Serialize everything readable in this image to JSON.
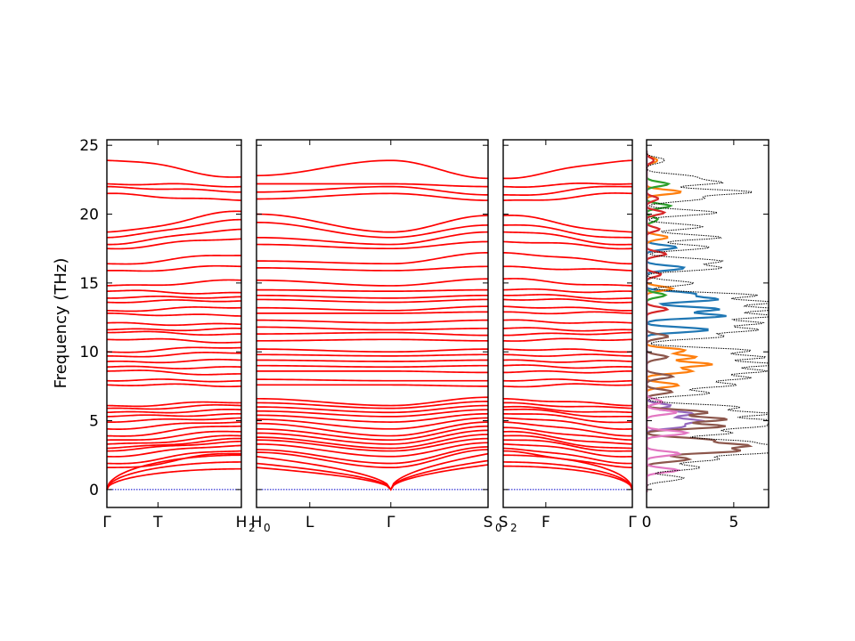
{
  "chart_data": {
    "type": "line",
    "title": "",
    "ylabel": "Frequency (THz)",
    "ylim": [
      -1.3,
      25.4
    ],
    "yticks": [
      0,
      5,
      10,
      15,
      20,
      25
    ],
    "band_color": "#ff0000",
    "zero_line_color": "#0000cc",
    "dos_envelope_color": "#000000",
    "band_segments": [
      {
        "id": "seg1",
        "xlim": [
          0,
          1
        ],
        "ticks": [
          {
            "x": 0,
            "label": "Γ",
            "sub": ""
          },
          {
            "x": 0.38,
            "label": "T",
            "sub": ""
          },
          {
            "x": 1,
            "label": "H",
            "sub": "2"
          }
        ],
        "start_freqs": [
          0,
          0,
          0,
          1.6,
          1.9,
          2.4,
          2.8,
          3.0,
          3.3,
          3.6,
          3.9,
          4.4,
          4.9,
          5.3,
          5.6,
          5.9,
          6.1,
          7.6,
          7.9,
          8.6,
          8.9,
          9.3,
          9.7,
          10.0,
          10.9,
          11.4,
          11.6,
          12.1,
          12.8,
          13.0,
          13.6,
          13.9,
          14.4,
          14.8,
          15.9,
          16.4,
          17.5,
          17.8,
          18.3,
          18.7,
          21.5,
          22.0,
          22.2,
          23.9
        ],
        "end_freqs": [
          1.5,
          2.0,
          2.5,
          2.6,
          2.8,
          3.2,
          3.5,
          3.7,
          3.9,
          4.2,
          4.6,
          4.9,
          5.2,
          5.5,
          5.8,
          6.1,
          6.3,
          7.5,
          7.9,
          8.4,
          8.9,
          9.4,
          9.9,
          10.3,
          10.7,
          11.3,
          11.7,
          12.0,
          12.6,
          13.2,
          13.7,
          14.0,
          14.3,
          15.2,
          16.2,
          17.0,
          18.2,
          18.9,
          19.6,
          20.2,
          21.0,
          21.6,
          22.0,
          22.7
        ]
      },
      {
        "id": "seg2",
        "xlim": [
          0,
          1
        ],
        "ticks": [
          {
            "x": 0,
            "label": "H",
            "sub": "0"
          },
          {
            "x": 0.23,
            "label": "L",
            "sub": ""
          },
          {
            "x": 0.58,
            "label": "Γ",
            "sub": ""
          },
          {
            "x": 1,
            "label": "S",
            "sub": "0"
          }
        ],
        "gamma_x": 0.58,
        "start_freqs": [
          1.6,
          1.9,
          2.4,
          2.7,
          2.9,
          3.3,
          3.6,
          3.8,
          4.1,
          4.4,
          4.8,
          5.1,
          5.4,
          5.7,
          6.0,
          6.3,
          6.6,
          7.6,
          8.0,
          8.6,
          9.0,
          9.4,
          9.8,
          10.2,
          10.8,
          11.3,
          11.8,
          12.3,
          12.8,
          13.2,
          13.8,
          14.1,
          14.5,
          15.2,
          16.1,
          16.6,
          17.8,
          18.3,
          19.4,
          20.0,
          21.1,
          21.6,
          22.2,
          22.8
        ],
        "gamma_freqs": [
          0,
          0,
          0,
          1.6,
          1.9,
          2.4,
          2.8,
          3.0,
          3.3,
          3.6,
          3.9,
          4.4,
          4.9,
          5.3,
          5.6,
          5.9,
          6.1,
          7.6,
          7.9,
          8.6,
          8.9,
          9.3,
          9.7,
          10.0,
          10.9,
          11.4,
          11.6,
          12.1,
          12.8,
          13.0,
          13.6,
          13.9,
          14.4,
          14.8,
          15.9,
          16.4,
          17.5,
          17.8,
          18.3,
          18.7,
          21.5,
          22.0,
          22.2,
          23.9
        ],
        "end_freqs": [
          1.8,
          2.1,
          2.6,
          2.9,
          3.1,
          3.4,
          3.7,
          4.0,
          4.3,
          4.6,
          4.9,
          5.2,
          5.5,
          5.8,
          6.1,
          6.4,
          6.7,
          7.5,
          7.9,
          8.5,
          9.0,
          9.4,
          9.8,
          10.2,
          10.8,
          11.2,
          11.7,
          12.3,
          12.9,
          13.3,
          13.8,
          14.1,
          14.5,
          15.3,
          16.2,
          17.2,
          18.0,
          18.7,
          19.2,
          19.9,
          21.0,
          21.4,
          22.0,
          22.6
        ]
      },
      {
        "id": "seg3",
        "xlim": [
          0,
          1
        ],
        "ticks": [
          {
            "x": 0,
            "label": "S",
            "sub": "2"
          },
          {
            "x": 0.33,
            "label": "F",
            "sub": ""
          },
          {
            "x": 1,
            "label": "Γ",
            "sub": ""
          }
        ],
        "start_freqs": [
          1.7,
          2.0,
          2.5,
          2.8,
          3.0,
          3.3,
          3.6,
          3.9,
          4.2,
          4.5,
          4.9,
          5.2,
          5.5,
          5.8,
          6.0,
          6.3,
          6.6,
          7.5,
          7.9,
          8.5,
          9.0,
          9.4,
          9.8,
          10.2,
          10.8,
          11.2,
          11.7,
          12.3,
          12.9,
          13.3,
          13.8,
          14.1,
          14.5,
          15.3,
          16.2,
          17.2,
          18.0,
          18.7,
          19.2,
          19.9,
          21.0,
          21.4,
          22.0,
          22.6
        ],
        "end_freqs": [
          0,
          0,
          0,
          1.6,
          1.9,
          2.4,
          2.8,
          3.0,
          3.3,
          3.6,
          3.9,
          4.4,
          4.9,
          5.3,
          5.6,
          5.9,
          6.1,
          7.6,
          7.9,
          8.6,
          8.9,
          9.3,
          9.7,
          10.0,
          10.9,
          11.4,
          11.6,
          12.1,
          12.8,
          13.0,
          13.6,
          13.9,
          14.4,
          14.8,
          15.9,
          16.4,
          17.5,
          17.8,
          18.3,
          18.7,
          21.5,
          22.0,
          22.2,
          23.9
        ]
      }
    ],
    "dos": {
      "xlim": [
        0,
        7
      ],
      "xticks": [
        0,
        5
      ],
      "total_peaks": [
        [
          0.8,
          2.0
        ],
        [
          1.6,
          2.4
        ],
        [
          2.2,
          4.0
        ],
        [
          2.7,
          6.2
        ],
        [
          3.1,
          6.6
        ],
        [
          3.5,
          5.2
        ],
        [
          4.1,
          4.2
        ],
        [
          4.6,
          5.6
        ],
        [
          5.0,
          7.0
        ],
        [
          5.5,
          6.4
        ],
        [
          6.0,
          4.6
        ],
        [
          7.0,
          3.0
        ],
        [
          7.6,
          4.6
        ],
        [
          8.1,
          5.6
        ],
        [
          8.6,
          6.0
        ],
        [
          9.1,
          7.0
        ],
        [
          9.6,
          6.4
        ],
        [
          10.1,
          5.2
        ],
        [
          11.1,
          4.0
        ],
        [
          11.6,
          5.6
        ],
        [
          12.1,
          6.2
        ],
        [
          12.6,
          6.8
        ],
        [
          13.1,
          6.6
        ],
        [
          13.6,
          7.0
        ],
        [
          14.1,
          5.8
        ],
        [
          15.0,
          2.4
        ],
        [
          16.1,
          3.6
        ],
        [
          16.6,
          4.2
        ],
        [
          17.6,
          3.0
        ],
        [
          18.3,
          4.0
        ],
        [
          19.1,
          2.6
        ],
        [
          20.1,
          3.4
        ],
        [
          21.1,
          3.0
        ],
        [
          21.6,
          5.4
        ],
        [
          22.3,
          4.0
        ],
        [
          22.7,
          2.2
        ],
        [
          23.9,
          1.0
        ]
      ],
      "partials": [
        {
          "color": "#1f77b4",
          "peaks": [
            [
              11.6,
              3.0
            ],
            [
              12.6,
              4.2
            ],
            [
              13.1,
              3.6
            ],
            [
              13.8,
              4.0
            ],
            [
              14.2,
              2.2
            ],
            [
              16.1,
              1.6
            ],
            [
              17.6,
              1.2
            ]
          ]
        },
        {
          "color": "#ff7f0e",
          "peaks": [
            [
              7.6,
              1.4
            ],
            [
              8.6,
              2.0
            ],
            [
              9.1,
              3.4
            ],
            [
              9.6,
              2.6
            ],
            [
              10.1,
              1.6
            ],
            [
              14.6,
              1.0
            ],
            [
              18.3,
              1.0
            ],
            [
              21.6,
              1.4
            ],
            [
              23.9,
              0.6
            ]
          ]
        },
        {
          "color": "#2ca02c",
          "peaks": [
            [
              14.1,
              0.8
            ],
            [
              19.6,
              0.6
            ],
            [
              20.6,
              1.0
            ],
            [
              22.2,
              1.0
            ]
          ]
        },
        {
          "color": "#d62728",
          "peaks": [
            [
              13.1,
              0.8
            ],
            [
              15.6,
              0.6
            ],
            [
              17.1,
              0.8
            ],
            [
              18.9,
              0.5
            ],
            [
              20.1,
              0.7
            ],
            [
              21.1,
              0.6
            ],
            [
              23.9,
              0.4
            ]
          ]
        },
        {
          "color": "#9467bd",
          "peaks": [
            [
              5.0,
              3.0
            ],
            [
              5.5,
              2.2
            ],
            [
              4.6,
              1.6
            ],
            [
              6.1,
              1.0
            ]
          ]
        },
        {
          "color": "#8c564b",
          "peaks": [
            [
              2.2,
              2.4
            ],
            [
              2.8,
              4.6
            ],
            [
              3.2,
              5.2
            ],
            [
              3.6,
              3.6
            ],
            [
              4.6,
              4.0
            ],
            [
              5.1,
              4.6
            ],
            [
              5.6,
              3.0
            ],
            [
              7.1,
              1.0
            ],
            [
              8.2,
              1.2
            ],
            [
              9.6,
              1.0
            ],
            [
              11.1,
              1.0
            ]
          ]
        },
        {
          "color": "#e377c2",
          "peaks": [
            [
              1.4,
              1.2
            ],
            [
              2.6,
              1.4
            ],
            [
              4.1,
              1.8
            ],
            [
              5.6,
              1.2
            ],
            [
              6.4,
              0.8
            ]
          ]
        }
      ]
    }
  }
}
